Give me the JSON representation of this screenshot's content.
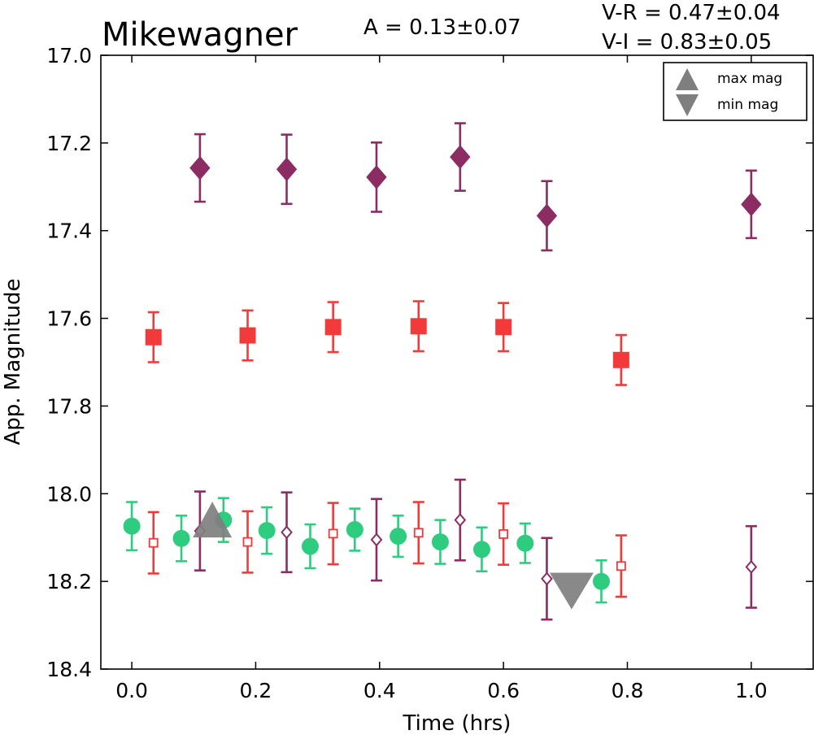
{
  "header": {
    "title": "Mikewagner",
    "amplitude": "A  = 0.13±0.07",
    "v_r": "V-R = 0.47±0.04",
    "v_i": "V-I  = 0.83±0.05"
  },
  "chart_data": {
    "type": "scatter",
    "title": "Mikewagner",
    "xlabel": "Time (hrs)",
    "ylabel": "App. Magnitude",
    "xlim": [
      -0.05,
      1.1
    ],
    "ylim": [
      17.0,
      18.4
    ],
    "y_inverted": true,
    "grid": false,
    "legend_position": "top-right",
    "x_ticks": [
      "0.0",
      "0.2",
      "0.4",
      "0.6",
      "0.8",
      "1.0"
    ],
    "y_ticks": [
      "17.0",
      "17.2",
      "17.4",
      "17.6",
      "17.8",
      "18.0",
      "18.2",
      "18.4"
    ],
    "series": [
      {
        "marker": "diamond-filled",
        "color": "#8b2c63",
        "x": [
          0.11,
          0.25,
          0.395,
          0.53,
          0.67,
          1.0
        ],
        "y": [
          17.257,
          17.26,
          17.278,
          17.232,
          17.366,
          17.34
        ],
        "err": [
          0.077,
          0.079,
          0.079,
          0.077,
          0.079,
          0.077
        ]
      },
      {
        "marker": "square-filled",
        "color": "#f23a3a",
        "x": [
          0.035,
          0.187,
          0.325,
          0.463,
          0.6,
          0.79
        ],
        "y": [
          17.643,
          17.639,
          17.62,
          17.618,
          17.62,
          17.695
        ],
        "err": [
          0.057,
          0.057,
          0.057,
          0.057,
          0.055,
          0.057
        ]
      },
      {
        "marker": "circle-filled",
        "color": "#2ecc7f",
        "x": [
          0.0,
          0.08,
          0.148,
          0.218,
          0.288,
          0.36,
          0.43,
          0.498,
          0.565,
          0.635,
          0.758
        ],
        "y": [
          18.074,
          18.102,
          18.06,
          18.084,
          18.12,
          18.082,
          18.097,
          18.11,
          18.127,
          18.113,
          18.2
        ],
        "err": [
          0.055,
          0.052,
          0.05,
          0.053,
          0.05,
          0.048,
          0.047,
          0.05,
          0.05,
          0.045,
          0.048
        ]
      },
      {
        "marker": "square-open",
        "color": "#f23a3a",
        "x": [
          0.035,
          0.187,
          0.325,
          0.463,
          0.6,
          0.79
        ],
        "y": [
          18.112,
          18.11,
          18.091,
          18.089,
          18.092,
          18.165
        ],
        "err": [
          0.07,
          0.07,
          0.07,
          0.07,
          0.07,
          0.07
        ]
      },
      {
        "marker": "diamond-open",
        "color": "#8b2c63",
        "x": [
          0.11,
          0.25,
          0.395,
          0.53,
          0.67,
          1.0
        ],
        "y": [
          18.085,
          18.088,
          18.105,
          18.06,
          18.194,
          18.167
        ],
        "err": [
          0.09,
          0.091,
          0.093,
          0.092,
          0.093,
          0.093
        ]
      }
    ],
    "max_mag": {
      "label": "max mag",
      "x": 0.13,
      "y": 18.085,
      "color": "#7f7f7f"
    },
    "min_mag": {
      "label": "min mag",
      "x": 0.71,
      "y": 18.195,
      "color": "#7f7f7f"
    }
  }
}
